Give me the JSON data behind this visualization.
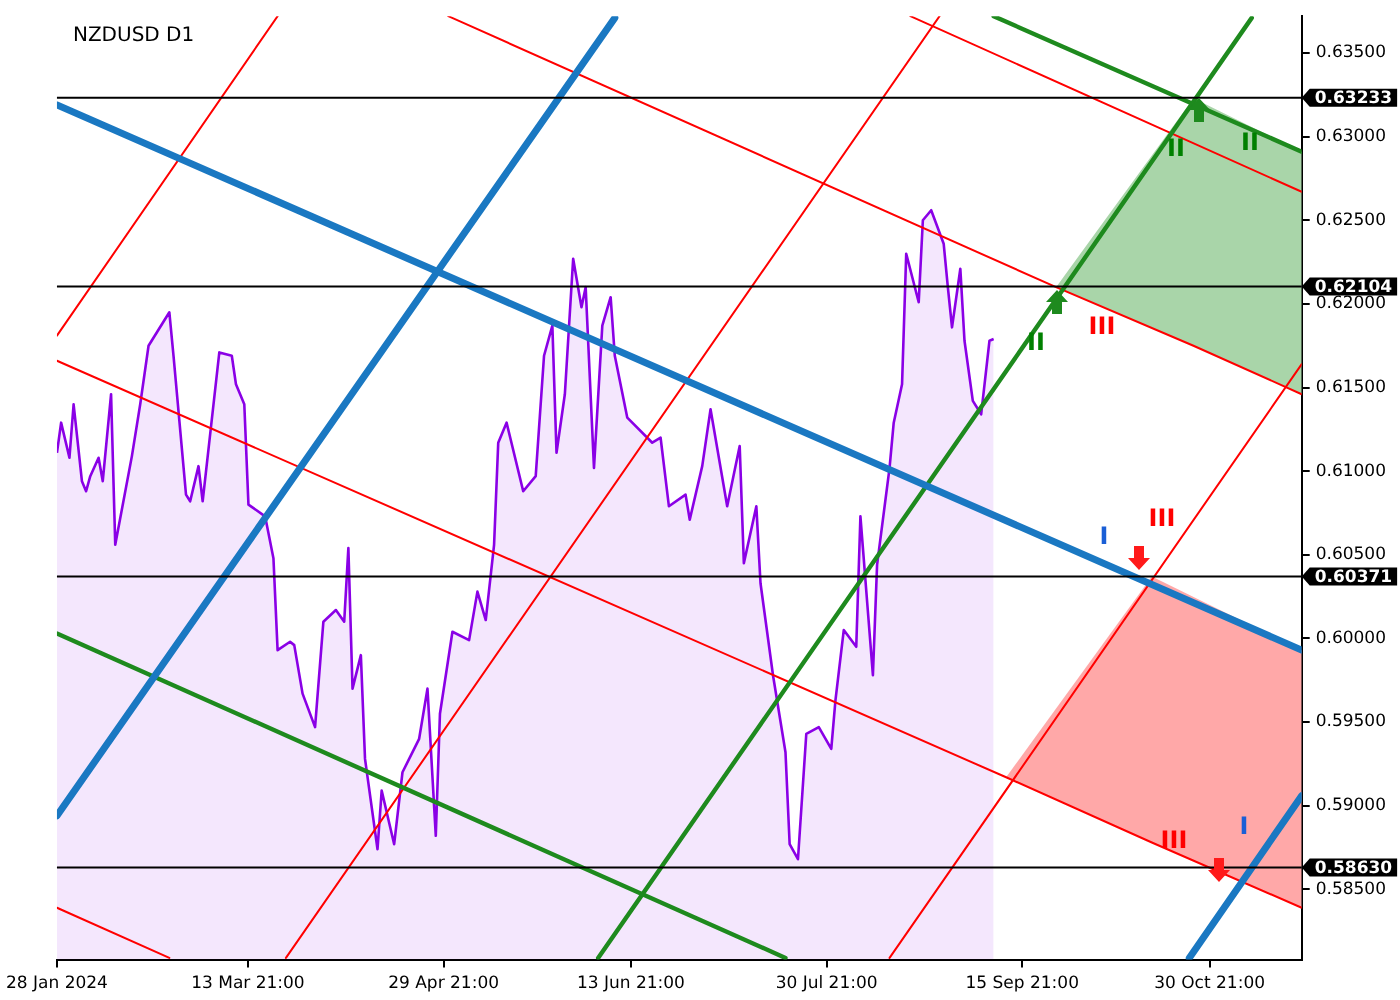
{
  "chart_data": {
    "type": "area",
    "title": "NZDUSD D1",
    "marker": "none",
    "xlim": [
      "2024-01-28",
      "2024-11-22"
    ],
    "xticks": [
      {
        "value": "2024-01-28",
        "label": "28 Jan 2024"
      },
      {
        "value": "2024-03-13T21:00",
        "label": "13 Mar 21:00"
      },
      {
        "value": "2024-04-29T21:00",
        "label": "29 Apr 21:00"
      },
      {
        "value": "2024-06-13T21:00",
        "label": "13 Jun 21:00"
      },
      {
        "value": "2024-07-30T21:00",
        "label": "30 Jul 21:00"
      },
      {
        "value": "2024-09-15T21:00",
        "label": "15 Sep 21:00"
      },
      {
        "value": "2024-10-30T21:00",
        "label": "30 Oct 21:00"
      }
    ],
    "ylim": [
      0.5808,
      0.6372
    ],
    "yticks": [
      {
        "value": 0.585,
        "label": "0.58500"
      },
      {
        "value": 0.59,
        "label": "0.59000"
      },
      {
        "value": 0.595,
        "label": "0.59500"
      },
      {
        "value": 0.6,
        "label": "0.60000"
      },
      {
        "value": 0.605,
        "label": "0.60500"
      },
      {
        "value": 0.61,
        "label": "0.61000"
      },
      {
        "value": 0.615,
        "label": "0.61500"
      },
      {
        "value": 0.62,
        "label": "0.62000"
      },
      {
        "value": 0.625,
        "label": "0.62500"
      },
      {
        "value": 0.63,
        "label": "0.63000"
      },
      {
        "value": 0.635,
        "label": "0.63500"
      }
    ],
    "series": [
      {
        "color": "#8a00e6",
        "x": [
          "2024-01-28",
          "2024-01-29",
          "2024-01-31",
          "2024-02-01",
          "2024-02-03",
          "2024-02-04",
          "2024-02-05",
          "2024-02-07",
          "2024-02-08",
          "2024-02-10",
          "2024-02-11",
          "2024-02-15",
          "2024-02-17",
          "2024-02-19",
          "2024-02-24",
          "2024-02-25",
          "2024-02-28",
          "2024-02-29",
          "2024-03-02",
          "2024-03-03",
          "2024-03-07",
          "2024-03-10",
          "2024-03-11",
          "2024-03-13",
          "2024-03-14",
          "2024-03-18",
          "2024-03-20",
          "2024-03-21",
          "2024-03-24",
          "2024-03-25",
          "2024-03-27",
          "2024-03-30",
          "2024-04-01",
          "2024-04-04",
          "2024-04-06",
          "2024-04-07",
          "2024-04-08",
          "2024-04-10",
          "2024-04-11",
          "2024-04-14",
          "2024-04-15",
          "2024-04-18",
          "2024-04-20",
          "2024-04-24",
          "2024-04-26",
          "2024-04-28",
          "2024-04-29",
          "2024-05-02",
          "2024-05-06",
          "2024-05-08",
          "2024-05-10",
          "2024-05-12",
          "2024-05-13",
          "2024-05-15",
          "2024-05-19",
          "2024-05-22",
          "2024-05-24",
          "2024-05-26",
          "2024-05-27",
          "2024-05-29",
          "2024-05-31",
          "2024-06-02",
          "2024-06-03",
          "2024-06-05",
          "2024-06-07",
          "2024-06-09",
          "2024-06-10",
          "2024-06-13",
          "2024-06-19",
          "2024-06-21",
          "2024-06-23",
          "2024-06-27",
          "2024-06-28",
          "2024-07-01",
          "2024-07-03",
          "2024-07-07",
          "2024-07-10",
          "2024-07-11",
          "2024-07-14",
          "2024-07-15",
          "2024-07-18",
          "2024-07-21",
          "2024-07-22",
          "2024-07-24",
          "2024-07-26",
          "2024-07-29",
          "2024-08-01",
          "2024-08-02",
          "2024-08-04",
          "2024-08-07",
          "2024-08-08",
          "2024-08-11",
          "2024-08-12",
          "2024-08-15",
          "2024-08-16",
          "2024-08-18",
          "2024-08-19",
          "2024-08-22",
          "2024-08-23",
          "2024-08-25",
          "2024-08-28",
          "2024-08-29",
          "2024-08-30",
          "2024-09-01",
          "2024-09-02",
          "2024-09-04",
          "2024-09-06",
          "2024-09-08",
          "2024-09-09"
        ],
        "values": [
          0.6111,
          0.6129,
          0.6108,
          0.614,
          0.6094,
          0.6088,
          0.6097,
          0.6108,
          0.6094,
          0.6146,
          0.6056,
          0.6109,
          0.614,
          0.6175,
          0.6195,
          0.6169,
          0.6086,
          0.6082,
          0.6103,
          0.6082,
          0.6171,
          0.6169,
          0.6152,
          0.614,
          0.608,
          0.6073,
          0.6048,
          0.5993,
          0.5998,
          0.5996,
          0.5967,
          0.5947,
          0.601,
          0.6017,
          0.601,
          0.6054,
          0.597,
          0.599,
          0.5928,
          0.5874,
          0.5909,
          0.5877,
          0.592,
          0.594,
          0.597,
          0.5882,
          0.5955,
          0.6004,
          0.5999,
          0.6028,
          0.6011,
          0.6056,
          0.6117,
          0.6129,
          0.6088,
          0.6097,
          0.6169,
          0.6187,
          0.6111,
          0.6146,
          0.6227,
          0.6198,
          0.621,
          0.6102,
          0.6187,
          0.6204,
          0.6169,
          0.6132,
          0.6117,
          0.612,
          0.6079,
          0.6086,
          0.6071,
          0.6103,
          0.6137,
          0.6079,
          0.6115,
          0.6045,
          0.6079,
          0.6033,
          0.5978,
          0.5932,
          0.5877,
          0.5868,
          0.5943,
          0.5947,
          0.5934,
          0.5963,
          0.6005,
          0.5995,
          0.6073,
          0.5978,
          0.6044,
          0.6102,
          0.6129,
          0.6152,
          0.623,
          0.6201,
          0.625,
          0.6256,
          0.6236,
          0.621,
          0.6186,
          0.6221,
          0.6178,
          0.6142,
          0.6134,
          0.6178,
          0.6179
        ]
      },
      {
        "type": "line",
        "color": "#1a78c2",
        "x": [
          "2024-01-28",
          "2024-11-22"
        ],
        "values": [
          0.6319,
          0.5993
        ]
      },
      {
        "type": "line",
        "color": "#1a78c2",
        "x": [
          "2024-01-28",
          "2024-06-10"
        ],
        "values": [
          0.5894,
          0.6371
        ]
      },
      {
        "type": "line",
        "color": "#1a78c2",
        "x": [
          "2024-10-26",
          "2024-11-22"
        ],
        "values": [
          0.5809,
          0.5906
        ]
      },
      {
        "type": "line",
        "color": "#1e8a1e",
        "x": [
          "2024-01-28",
          "2024-07-21"
        ],
        "values": [
          0.6003,
          0.5809
        ]
      },
      {
        "type": "line",
        "color": "#1e8a1e",
        "x": [
          "2024-06-06",
          "2024-11-10"
        ],
        "values": [
          0.5809,
          0.6371
        ]
      },
      {
        "type": "line",
        "color": "#1e8a1e",
        "x": [
          "2024-09-09",
          "2024-11-22"
        ],
        "values": [
          0.6372,
          0.6291
        ]
      },
      {
        "type": "line",
        "color": "#ff0000",
        "x": [
          "2024-08-20",
          "2024-11-22"
        ],
        "values": [
          0.6372,
          0.6267
        ]
      },
      {
        "type": "line",
        "color": "#ff0000",
        "x": [
          "2024-05-01",
          "2024-09-24",
          "2024-10-27",
          "2024-11-22"
        ],
        "values": [
          0.6372,
          0.621,
          0.6175,
          0.6146
        ],
        "lower": [
          null,
          0.621,
          0.6175,
          0.6146
        ],
        "upper": [
          null,
          0.621,
          0.6323,
          0.6291
        ]
      },
      {
        "type": "line",
        "color": "#ff0000",
        "x": [
          "2024-01-28",
          "2024-09-12",
          "2024-10-17",
          "2024-11-22"
        ],
        "values": [
          0.6166,
          0.5917,
          0.5878,
          0.5839
        ],
        "lower": [
          null,
          0.5917,
          0.5878,
          0.5839
        ],
        "upper": [
          null,
          0.5917,
          0.6037,
          0.5993
        ]
      },
      {
        "type": "line",
        "color": "#ff0000",
        "x": [
          "2024-01-28",
          "2024-02-24"
        ],
        "values": [
          0.5839,
          0.5809
        ]
      },
      {
        "type": "line",
        "color": "#ff0000",
        "x": [
          "2024-01-28",
          "2024-03-21"
        ],
        "values": [
          0.6181,
          0.6372
        ]
      },
      {
        "type": "line",
        "color": "#ff0000",
        "x": [
          "2024-03-23",
          "2024-08-27"
        ],
        "values": [
          0.5809,
          0.6372
        ]
      },
      {
        "type": "line",
        "color": "#ff0000",
        "x": [
          "2024-08-15",
          "2024-11-22"
        ],
        "values": [
          0.5809,
          0.6164
        ]
      }
    ],
    "ref_lines": [
      {
        "axis": "y",
        "value": 0.63233,
        "label": "0.63233",
        "color": "#000000"
      },
      {
        "axis": "y",
        "value": 0.62104,
        "label": "0.62104",
        "color": "#000000"
      },
      {
        "axis": "y",
        "value": 0.60371,
        "label": "0.60371",
        "color": "#000000"
      },
      {
        "axis": "y",
        "value": 0.5863,
        "label": "0.58630",
        "color": "#000000"
      }
    ],
    "annotations": [
      "II",
      "III",
      "II",
      "II",
      "I",
      "III",
      "III",
      "I"
    ]
  }
}
